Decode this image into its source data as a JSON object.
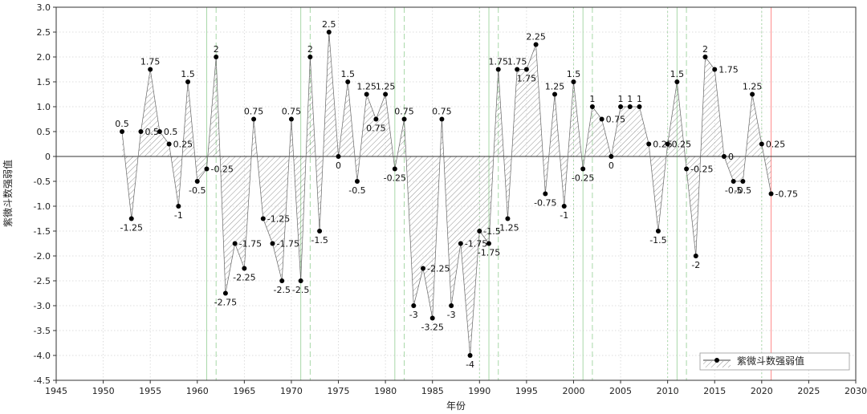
{
  "chart_data": {
    "type": "line",
    "title": "",
    "xlabel": "年份",
    "ylabel": "紫微斗数强弱值",
    "xlim": [
      1945,
      2030
    ],
    "ylim": [
      -4.5,
      3.0
    ],
    "xticks": [
      1945,
      1950,
      1955,
      1960,
      1965,
      1970,
      1975,
      1980,
      1985,
      1990,
      1995,
      2000,
      2005,
      2010,
      2015,
      2020,
      2025,
      2030
    ],
    "yticks": [
      3.0,
      2.5,
      2.0,
      1.5,
      1.0,
      0.5,
      0,
      -0.5,
      -1.0,
      -1.5,
      -2.0,
      -2.5,
      -3.0,
      -3.5,
      -4.0,
      -4.5
    ],
    "ytick_labels": [
      "3.0",
      "2.5",
      "2.0",
      "1.5",
      "1.0",
      "0.5",
      "0",
      "-0.5",
      "-1.0",
      "-1.5",
      "-2.0",
      "-2.5",
      "-3.0",
      "-3.5",
      "-4.0",
      "-4.5"
    ],
    "grid": true,
    "legend_position": "bottom-right",
    "series": [
      {
        "name": "紫微斗数强弱值",
        "color": "#000000",
        "fill_pattern": "hatched",
        "x": [
          1952,
          1953,
          1954,
          1955,
          1956,
          1957,
          1958,
          1959,
          1960,
          1961,
          1962,
          1963,
          1964,
          1965,
          1966,
          1967,
          1968,
          1969,
          1970,
          1971,
          1972,
          1973,
          1974,
          1975,
          1976,
          1977,
          1978,
          1979,
          1980,
          1981,
          1982,
          1983,
          1984,
          1985,
          1986,
          1987,
          1988,
          1989,
          1990,
          1991,
          1992,
          1993,
          1994,
          1995,
          1996,
          1997,
          1998,
          1999,
          2000,
          2001,
          2002,
          2003,
          2004,
          2005,
          2006,
          2007,
          2008,
          2009,
          2010,
          2011,
          2012,
          2013,
          2014,
          2015,
          2016,
          2017,
          2018,
          2019,
          2020,
          2021
        ],
        "values": [
          0.5,
          -1.25,
          0.5,
          1.75,
          0.5,
          0.25,
          -1,
          1.5,
          -0.5,
          -0.25,
          2,
          -2.75,
          -1.75,
          -2.25,
          0.75,
          -1.25,
          -1.75,
          -2.5,
          0.75,
          -2.5,
          2,
          -1.5,
          2.5,
          0,
          1.5,
          -0.5,
          1.25,
          0.75,
          1.25,
          -0.25,
          0.75,
          -3,
          -2.25,
          -3.25,
          0.75,
          -3,
          -1.75,
          -4,
          -1.5,
          -1.75,
          1.75,
          -1.25,
          1.75,
          1.75,
          2.25,
          -0.75,
          1.25,
          -1,
          1.5,
          -0.25,
          1,
          0.75,
          0,
          1,
          1,
          1,
          0.25,
          -1.5,
          0.25,
          1.5,
          -0.25,
          -2,
          2,
          1.75,
          0,
          -0.5,
          -0.5,
          1.25,
          0.25,
          -0.75
        ],
        "labels": [
          "0.5",
          "-1.25",
          "0.5",
          "1.75",
          "0.5",
          "0.25",
          "-1",
          "1.5",
          "-0.5",
          "-0.25",
          "2",
          "-2.75",
          "-1.75",
          "-2.25",
          "0.75",
          "-1.25",
          "-1.75",
          "-2.5",
          "0.75",
          "-2.5",
          "2",
          "-1.5",
          "2.5",
          "0",
          "1.5",
          "-0.5",
          "1.25",
          "0.75",
          "1.25",
          "-0.25",
          "0.75",
          "-3",
          "-2.25",
          "-3.25",
          "0.75",
          "-3",
          "-1.75",
          "-4",
          "-1.5",
          "-1.75",
          "1.75",
          "-1.25",
          "1.75",
          "1.75",
          "2.25",
          "-0.75",
          "1.25",
          "-1",
          "1.5",
          "-0.25",
          "1",
          "0.75",
          "0",
          "1",
          "1",
          "1",
          "0.25",
          "-1.5",
          "0.25",
          "1.5",
          "-0.25",
          "-2",
          "2",
          "1.75",
          "0",
          "-0.5",
          "-0.5",
          "1.25",
          "0.25",
          "-0.75"
        ]
      }
    ],
    "reference_lines": {
      "green_solid_years": [
        1961,
        1971,
        1981,
        1991,
        2001,
        2011
      ],
      "green_dashed_years": [
        1962,
        1972,
        1982,
        1992,
        2002,
        2012
      ],
      "green_dotted_years": [
        1990,
        2000,
        2010,
        2020
      ],
      "red_year": 2021,
      "green_color": "#a8d8a8",
      "red_color": "#ff9a9a"
    }
  }
}
